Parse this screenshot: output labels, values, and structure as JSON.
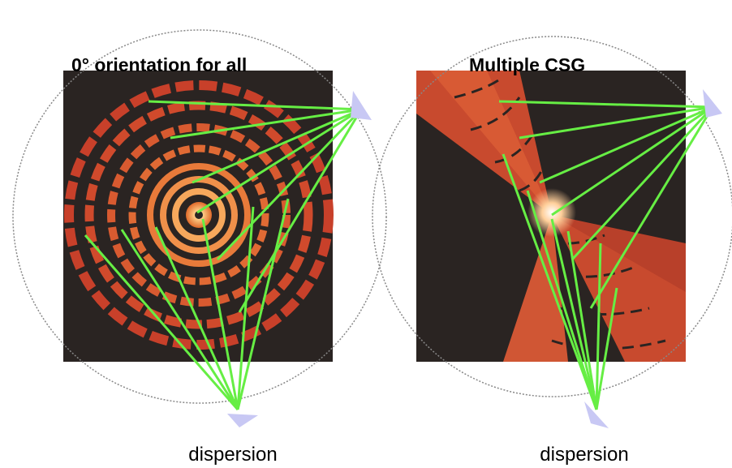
{
  "panels": [
    {
      "title": "0° orientation for all",
      "caption": "dispersion"
    },
    {
      "title": "Multiple CSG",
      "caption": "dispersion"
    }
  ]
}
